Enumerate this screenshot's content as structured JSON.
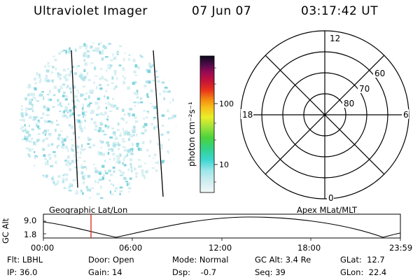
{
  "header": {
    "title": "Ultraviolet Imager",
    "date": "07 Jun 07",
    "time": "03:17:42 UT"
  },
  "colorbar": {
    "label": "photon cm⁻²s⁻¹",
    "ticks": [
      "100",
      "10"
    ]
  },
  "polar_plot": {
    "mlt_labels": {
      "top": "12",
      "left": "18",
      "right": "6",
      "bottom": "0"
    },
    "lat_labels": [
      "60",
      "70",
      "80"
    ]
  },
  "timeline": {
    "left_title": "Geographic Lat/Lon",
    "right_title": "Apex MLat/MLT",
    "y_axis_label": "GC Alt",
    "y_ticks": [
      "9.0",
      "1.8"
    ],
    "x_ticks": [
      "00:00",
      "06:00",
      "12:00",
      "18:00",
      "23:59"
    ],
    "current_time_marker_color": "#e0201a"
  },
  "status": {
    "row1": [
      {
        "label": "Flt:",
        "value": "LBHL"
      },
      {
        "label": "Door:",
        "value": "Open"
      },
      {
        "label": "Mode:",
        "value": "Normal"
      },
      {
        "label": "GC Alt:",
        "value": "3.4 Re"
      },
      {
        "label": "GLat:",
        "value": "12.7"
      }
    ],
    "row2": [
      {
        "label": "IP:",
        "value": "36.0"
      },
      {
        "label": "Gain:",
        "value": "14"
      },
      {
        "label": "Dsp:",
        "value": "-0.7"
      },
      {
        "label": "Seq:",
        "value": "39"
      },
      {
        "label": "GLon:",
        "value": "22.4"
      }
    ]
  },
  "colors": {
    "speckle": "#8fd8e4",
    "accent": "#e0201a"
  }
}
